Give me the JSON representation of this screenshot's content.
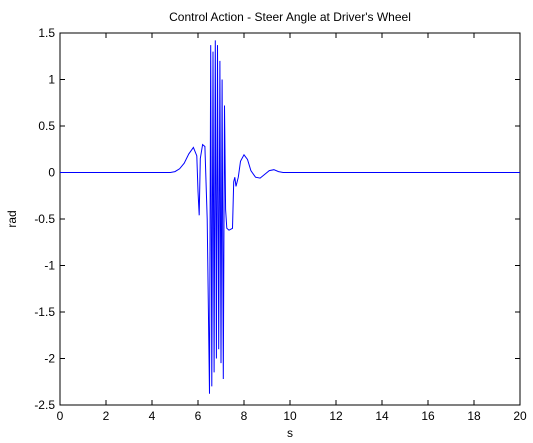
{
  "chart_data": {
    "type": "line",
    "title": "Control Action - Steer Angle at Driver's Wheel",
    "xlabel": "s",
    "ylabel": "rad",
    "xlim": [
      0,
      20
    ],
    "ylim": [
      -2.5,
      1.5
    ],
    "xticks": [
      0,
      2,
      4,
      6,
      8,
      10,
      12,
      14,
      16,
      18,
      20
    ],
    "yticks": [
      -2.5,
      -2,
      -1.5,
      -1,
      -0.5,
      0,
      0.5,
      1,
      1.5
    ],
    "xtick_labels": [
      "0",
      "2",
      "4",
      "6",
      "8",
      "10",
      "12",
      "14",
      "16",
      "18",
      "20"
    ],
    "ytick_labels": [
      "-2.5",
      "-2",
      "-1.5",
      "-1",
      "-0.5",
      "0",
      "0.5",
      "1",
      "1.5"
    ],
    "grid": false,
    "line_color": "#0000ff",
    "series": [
      {
        "x": [
          0,
          4.8,
          5.0,
          5.2,
          5.4,
          5.6,
          5.8,
          5.95,
          6.0,
          6.05,
          6.1,
          6.2,
          6.3,
          6.4,
          6.5,
          6.55,
          6.6,
          6.65,
          6.7,
          6.75,
          6.8,
          6.85,
          6.9,
          6.95,
          7.0,
          7.05,
          7.1,
          7.15,
          7.2,
          7.25,
          7.35,
          7.5,
          7.55,
          7.6,
          7.65,
          7.75,
          7.85,
          8.0,
          8.15,
          8.3,
          8.5,
          8.7,
          8.9,
          9.1,
          9.3,
          9.5,
          9.7,
          10.0,
          20
        ],
        "y": [
          0,
          0,
          0.01,
          0.04,
          0.1,
          0.2,
          0.27,
          0.18,
          -0.2,
          -0.46,
          0.15,
          0.3,
          0.28,
          -0.5,
          -2.38,
          1.37,
          -2.3,
          1.3,
          -2.15,
          1.42,
          -2.0,
          1.37,
          -1.9,
          1.2,
          -2.05,
          1.0,
          -2.22,
          0.72,
          -0.4,
          -0.6,
          -0.62,
          -0.6,
          -0.1,
          -0.05,
          -0.15,
          -0.05,
          0.12,
          0.19,
          0.14,
          0.02,
          -0.05,
          -0.06,
          -0.02,
          0.02,
          0.03,
          0.01,
          0.0,
          0.0,
          0.0
        ]
      }
    ]
  }
}
